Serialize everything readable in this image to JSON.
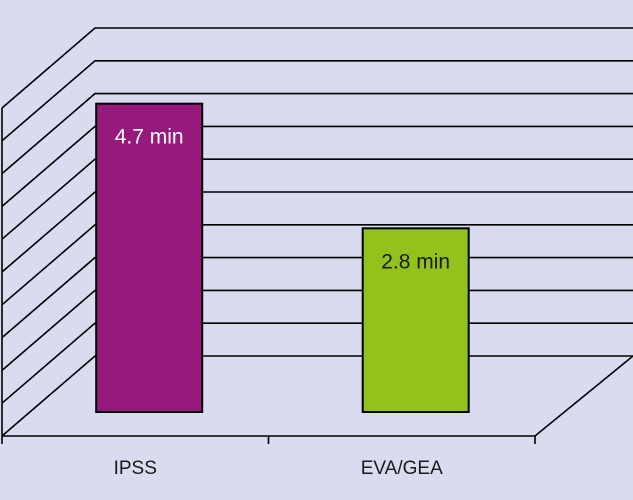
{
  "chart_data": {
    "type": "bar",
    "categories": [
      "IPSS",
      "EVA/GEA"
    ],
    "values": [
      4.7,
      2.8
    ],
    "data_labels": [
      "4.7 min",
      "2.8 min"
    ],
    "colors": [
      "#951a7c",
      "#93c21c"
    ],
    "title": "",
    "xlabel": "",
    "ylabel": "",
    "ylim": [
      0,
      5
    ],
    "grid": true,
    "style": "3d-floor-and-wall",
    "background": "#d9dcee"
  }
}
